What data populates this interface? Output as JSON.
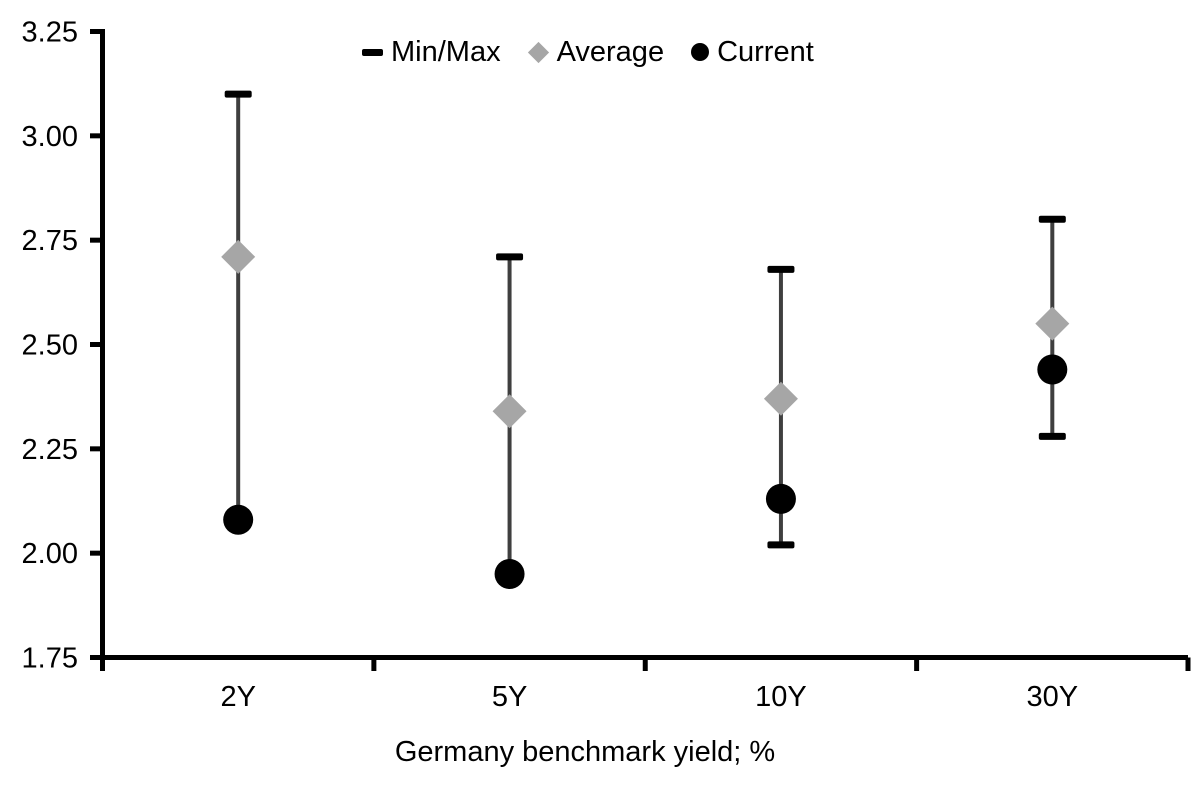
{
  "chart_data": {
    "type": "scatter",
    "subtype": "min-max-range-with-markers",
    "title": "",
    "xlabel": "Germany benchmark yield; %",
    "ylabel": "",
    "categories": [
      "2Y",
      "5Y",
      "10Y",
      "30Y"
    ],
    "ylim": [
      1.75,
      3.25
    ],
    "ytick_step": 0.25,
    "ytick_labels": [
      "3.25",
      "3.00",
      "2.75",
      "2.50",
      "2.25",
      "2.00",
      "1.75"
    ],
    "grid": false,
    "legend_position": "top",
    "series": [
      {
        "name": "Min/Max",
        "role": "range",
        "max": [
          3.1,
          2.71,
          2.68,
          2.8
        ],
        "min": [
          2.08,
          1.95,
          2.02,
          2.28
        ]
      },
      {
        "name": "Average",
        "role": "diamond-marker",
        "values": [
          2.71,
          2.34,
          2.37,
          2.55
        ]
      },
      {
        "name": "Current",
        "role": "circle-marker",
        "values": [
          2.08,
          1.95,
          2.13,
          2.44
        ]
      }
    ],
    "legend": [
      {
        "label": "Min/Max",
        "marker": "dash"
      },
      {
        "label": "Average",
        "marker": "diamond"
      },
      {
        "label": "Current",
        "marker": "circle"
      }
    ],
    "colors": {
      "background": "#ffffff",
      "axis": "#000000",
      "text": "#000000",
      "range_line": "#3f3f3f",
      "cap": "#000000",
      "average": "#a6a6a6",
      "current": "#000000"
    }
  }
}
